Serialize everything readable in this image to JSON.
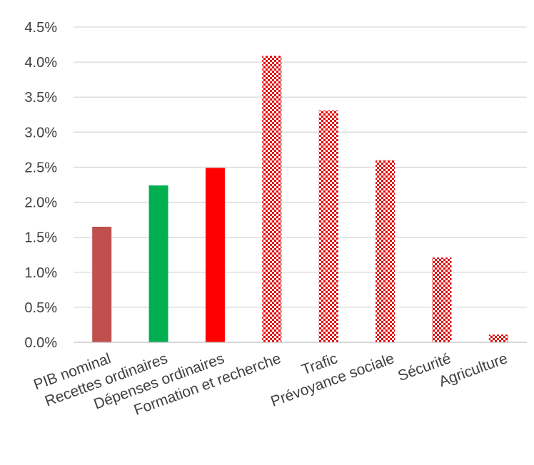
{
  "chart_data": {
    "type": "bar",
    "title": "",
    "xlabel": "",
    "ylabel": "",
    "ylim": [
      0,
      0.045
    ],
    "ytick_step": 0.005,
    "y_tick_format": "percent_1dp",
    "grid": true,
    "legend": "none",
    "categories": [
      "PIB nominal",
      "Recettes ordinaires",
      "Dépenses ordinaires",
      "Formation et recherche",
      "Trafic",
      "Prévoyance sociale",
      "Sécurité",
      "Agriculture"
    ],
    "values": [
      0.0165,
      0.0224,
      0.0249,
      0.0409,
      0.0331,
      0.026,
      0.0121,
      0.0011
    ],
    "bar_styles": [
      {
        "fill": "solid",
        "color": "#c0504d"
      },
      {
        "fill": "solid",
        "color": "#00b050"
      },
      {
        "fill": "solid",
        "color": "#ff0000"
      },
      {
        "fill": "checker",
        "color": "#e00000"
      },
      {
        "fill": "checker",
        "color": "#e00000"
      },
      {
        "fill": "checker",
        "color": "#e00000"
      },
      {
        "fill": "checker",
        "color": "#e00000"
      },
      {
        "fill": "checker",
        "color": "#e00000"
      }
    ]
  }
}
